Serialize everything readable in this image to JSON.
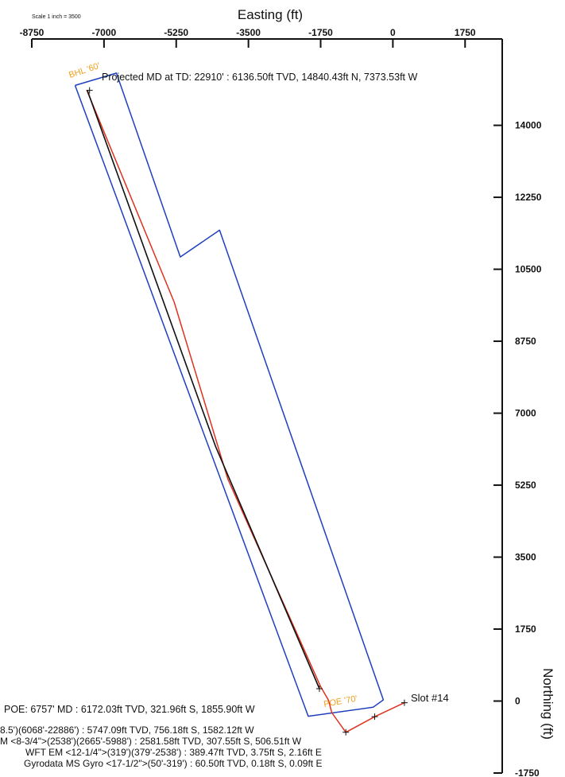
{
  "chart_data": {
    "type": "line",
    "scale_label": "Scale 1 inch = 3500",
    "xlabel": "Easting (ft)",
    "ylabel": "Northing (ft)",
    "xlim": [
      -8750,
      2650
    ],
    "ylim": [
      -1750,
      16100
    ],
    "x_ticks": [
      -8750,
      -7000,
      -5250,
      -3500,
      -1750,
      0,
      1750
    ],
    "x_tick_labels": [
      "-8750",
      "-7000",
      "-5250",
      "-3500",
      "-1750",
      "0",
      "1750"
    ],
    "y_ticks": [
      14000,
      12250,
      10500,
      8750,
      7000,
      5250,
      3500,
      1750,
      0,
      -1750
    ],
    "y_tick_labels": [
      "14000",
      "12250",
      "10500",
      "8750",
      "7000",
      "5250",
      "3500",
      "1750",
      "0",
      "-1750"
    ],
    "grid": false,
    "series": [
      {
        "name": "",
        "color": "#1f3fbf",
        "x": [
          -7700,
          -6700,
          -5150,
          -4200,
          -230,
          -480,
          -2050,
          -7700
        ],
        "y": [
          14970,
          15270,
          10800,
          11450,
          30,
          -150,
          -370,
          14970
        ]
      },
      {
        "name": "",
        "color": "#e0301e",
        "x": [
          -7420,
          -5300,
          -4000,
          -1750,
          -1560,
          -1480,
          -1140,
          -440,
          280
        ],
        "y": [
          14860,
          9700,
          5400,
          350,
          20,
          -280,
          -760,
          -380,
          -40
        ]
      },
      {
        "name": "",
        "color": "#111111",
        "x": [
          -7400,
          -4300,
          -1780
        ],
        "y": [
          14840,
          6200,
          300
        ]
      }
    ],
    "markers": [
      {
        "label": "BHL '60'",
        "x": -7450,
        "y": 15080
      },
      {
        "label": "POE '70'",
        "x": -1950,
        "y": -20
      }
    ],
    "annotations": {
      "bhl_label": "BHL '60'",
      "poe_label": "POE '70'",
      "projected": "Projected MD at TD: 22910' : 6136.50ft TVD, 14840.43ft N, 7373.53ft W",
      "slot": "Slot #14",
      "poe_info": "POE: 6757' MD : 6172.03ft TVD, 321.96ft S, 1855.90ft W"
    },
    "legend": [
      "8.5')(6068'-22886') : 5747.09ft TVD, 756.18ft S, 1582.12ft W",
      "M <8-3/4\">(2538')(2665'-5988') : 2581.58ft TVD, 307.55ft S, 506.51ft W",
      "WFT EM <12-1/4\">(319')(379'-2538') : 389.47ft TVD, 3.75ft S, 2.16ft E",
      "Gyrodata MS Gyro <17-1/2\">(50'-319') : 60.50ft TVD, 0.18ft S, 0.09ft E"
    ]
  }
}
